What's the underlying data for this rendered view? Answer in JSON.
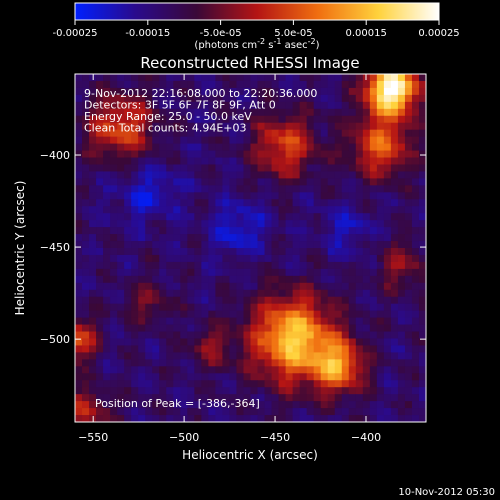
{
  "chart_data": {
    "type": "heatmap",
    "title": "Reconstructed RHESSI Image",
    "xlabel": "Heliocentric X (arcsec)",
    "ylabel": "Heliocentric Y (arcsec)",
    "xlim": [
      -560,
      -367
    ],
    "ylim": [
      -545,
      -356
    ],
    "x_ticks": [
      -550,
      -500,
      -450,
      -400
    ],
    "y_ticks": [
      -400,
      -450,
      -500
    ],
    "colorbar": {
      "range": [
        -0.00025,
        0.00025
      ],
      "ticks": [
        "-0.00025",
        "-0.00015",
        "-5.0e-05",
        "5.0e-05",
        "0.00015",
        "0.00025"
      ],
      "label": "(photons cm-2 s-1 asec-2)",
      "colors": [
        "#0020ff",
        "#2a0a8c",
        "#3a0838",
        "#b41414",
        "#f06e10",
        "#ffd23c",
        "#ffffff"
      ]
    },
    "annotations": [
      "9-Nov-2012 22:16:08.000 to 22:20:36.000",
      "Detectors: 3F 5F 6F 7F 8F 9F, Att 0",
      "Energy Range: 25.0 - 50.0 keV",
      "Clean     Total counts: 4.94E+03"
    ],
    "peak_label": "Position of Peak = [-386,-364]",
    "peak": [
      -386,
      -364
    ],
    "sources": [
      {
        "x": -386,
        "y": -364,
        "sigma": 10,
        "amp": 1.25
      },
      {
        "x": -440,
        "y": -500,
        "sigma": 16,
        "amp": 0.95
      },
      {
        "x": -415,
        "y": -515,
        "sigma": 10,
        "amp": 0.7
      },
      {
        "x": -445,
        "y": -395,
        "sigma": 12,
        "amp": 0.55
      },
      {
        "x": -535,
        "y": -385,
        "sigma": 13,
        "amp": 0.55
      },
      {
        "x": -392,
        "y": -395,
        "sigma": 12,
        "amp": 0.6
      },
      {
        "x": -560,
        "y": -500,
        "sigma": 8,
        "amp": 0.6
      },
      {
        "x": -555,
        "y": -540,
        "sigma": 10,
        "amp": 0.4
      },
      {
        "x": -485,
        "y": -505,
        "sigma": 8,
        "amp": 0.3
      },
      {
        "x": -380,
        "y": -460,
        "sigma": 10,
        "amp": 0.3
      },
      {
        "x": -520,
        "y": -480,
        "sigma": 9,
        "amp": 0.25
      },
      {
        "x": -470,
        "y": -440,
        "sigma": 10,
        "amp": -0.3
      },
      {
        "x": -520,
        "y": -420,
        "sigma": 12,
        "amp": -0.25
      },
      {
        "x": -410,
        "y": -440,
        "sigma": 10,
        "amp": -0.2
      }
    ]
  },
  "footer_date": "10-Nov-2012 05:30"
}
